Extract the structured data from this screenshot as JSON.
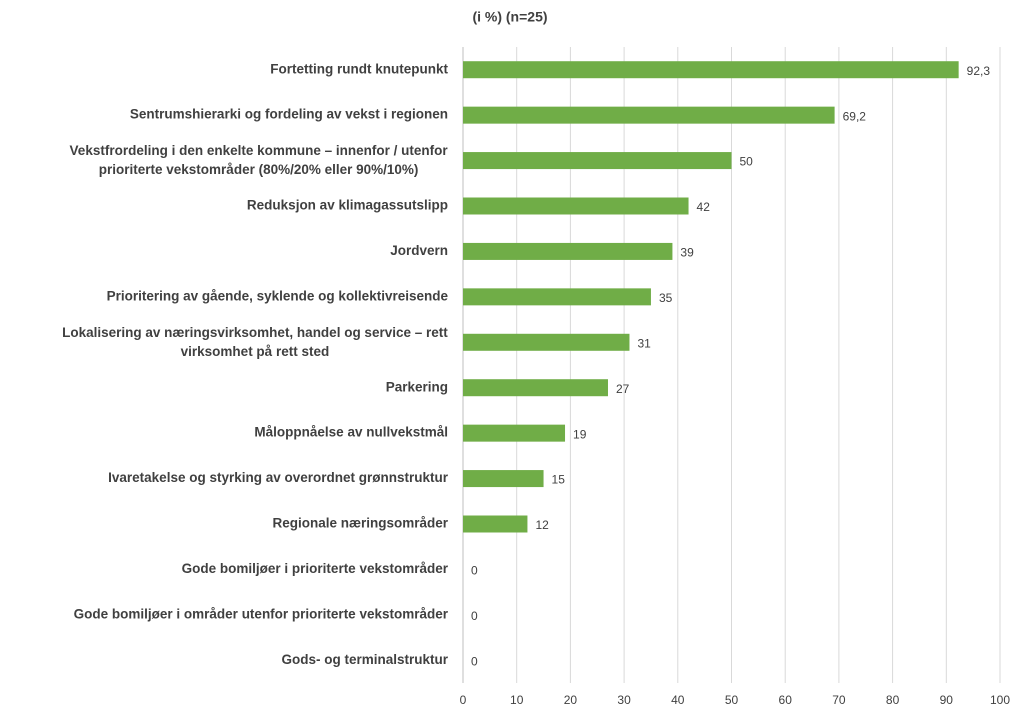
{
  "chart_data": {
    "type": "bar",
    "orientation": "horizontal",
    "title": "(i %) (n=25)",
    "categories": [
      "Fortetting rundt knutepunkt",
      "Sentrumshierarki og fordeling av vekst i regionen",
      [
        "Vekstfrordeling i den enkelte kommune – innenfor / utenfor",
        "prioriterte vekstområder (80%/20% eller 90%/10%)"
      ],
      "Reduksjon av klimagassutslipp",
      "Jordvern",
      "Prioritering av gående, syklende og kollektivreisende",
      [
        "Lokalisering av næringsvirksomhet, handel og service – rett",
        "virksomhet på rett sted"
      ],
      "Parkering",
      "Måloppnåelse av nullvekstmål",
      "Ivaretakelse og styrking av overordnet grønnstruktur",
      "Regionale næringsområder",
      "Gode bomiljøer i prioriterte vekstområder",
      "Gode bomiljøer i områder utenfor prioriterte vekstområder",
      "Gods- og terminalstruktur"
    ],
    "values": [
      92.3,
      69.2,
      50,
      42,
      39,
      35,
      31,
      27,
      19,
      15,
      12,
      0,
      0,
      0
    ],
    "value_labels": [
      "92,3",
      "69,2",
      "50",
      "42",
      "39",
      "35",
      "31",
      "27",
      "19",
      "15",
      "12",
      "0",
      "0",
      "0"
    ],
    "color": "#70ad47",
    "xlim": [
      0,
      100
    ],
    "xticks": [
      0,
      10,
      20,
      30,
      40,
      50,
      60,
      70,
      80,
      90,
      100
    ],
    "grid": true
  }
}
